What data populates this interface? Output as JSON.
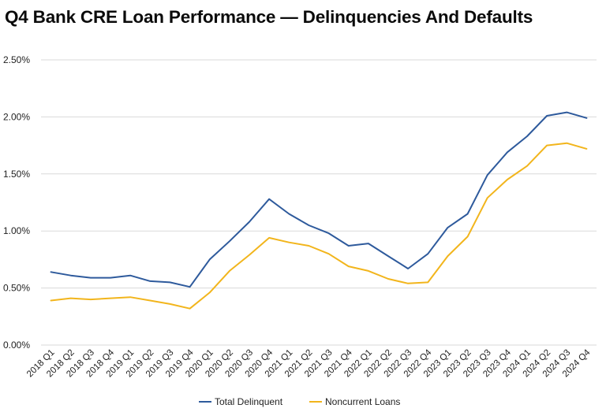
{
  "title": "Q4 Bank CRE Loan Performance — Delinquencies And Defaults",
  "chart_data": {
    "type": "line",
    "title": "Q4 Bank CRE Loan Performance — Delinquencies And Defaults",
    "xlabel": "",
    "ylabel": "",
    "ylim": [
      0,
      2.5
    ],
    "yticks": [
      "0.00%",
      "0.50%",
      "1.00%",
      "1.50%",
      "2.00%",
      "2.50%"
    ],
    "grid": "horizontal",
    "legend_position": "bottom",
    "categories": [
      "2018 Q1",
      "2018 Q2",
      "2018 Q3",
      "2018 Q4",
      "2019 Q1",
      "2019 Q2",
      "2019 Q3",
      "2019 Q4",
      "2020 Q1",
      "2020 Q2",
      "2020 Q3",
      "2020 Q4",
      "2021 Q1",
      "2021 Q2",
      "2021 Q3",
      "2021 Q4",
      "2022 Q1",
      "2022 Q2",
      "2022 Q3",
      "2022 Q4",
      "2023 Q1",
      "2023 Q2",
      "2023 Q3",
      "2023 Q4",
      "2024 Q1",
      "2024 Q2",
      "2024 Q3",
      "2024 Q4"
    ],
    "series": [
      {
        "name": "Total Delinquent",
        "color": "#2e5a9c",
        "values": [
          0.64,
          0.61,
          0.59,
          0.59,
          0.61,
          0.56,
          0.55,
          0.51,
          0.75,
          0.91,
          1.08,
          1.28,
          1.15,
          1.05,
          0.98,
          0.87,
          0.89,
          0.78,
          0.67,
          0.8,
          1.03,
          1.15,
          1.49,
          1.69,
          1.83,
          2.01,
          2.04,
          1.99
        ]
      },
      {
        "name": "Noncurrent Loans",
        "color": "#f2b51c",
        "values": [
          0.39,
          0.41,
          0.4,
          0.41,
          0.42,
          0.39,
          0.36,
          0.32,
          0.46,
          0.65,
          0.79,
          0.94,
          0.9,
          0.87,
          0.8,
          0.69,
          0.65,
          0.58,
          0.54,
          0.55,
          0.78,
          0.95,
          1.29,
          1.45,
          1.57,
          1.75,
          1.77,
          1.72
        ]
      }
    ]
  }
}
